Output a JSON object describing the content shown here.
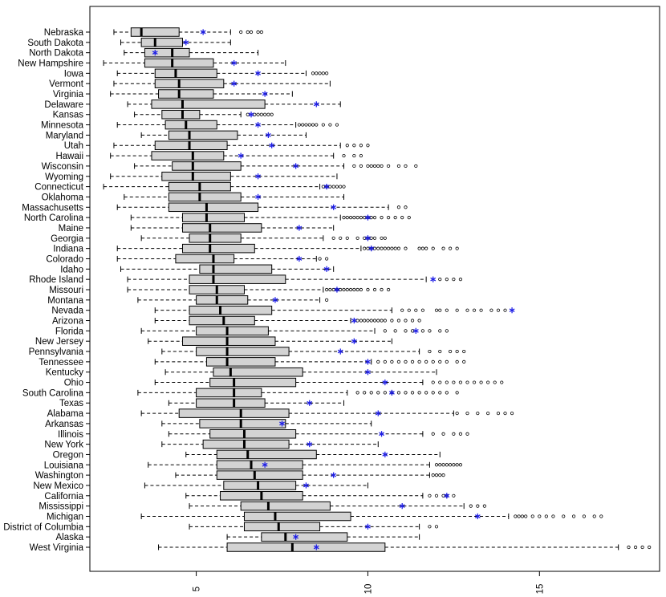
{
  "chart_data": {
    "type": "boxplot",
    "orientation": "horizontal",
    "xlim": [
      1.9,
      18.5
    ],
    "x_ticks": [
      5,
      10,
      15
    ],
    "x_tick_labels": [
      "5",
      "10",
      "15"
    ],
    "colors": {
      "box_fill": "#d3d3d3",
      "mean_marker": "#1f1fe6",
      "median": "#000000"
    },
    "series": [
      {
        "name": "Nebraska",
        "whisker_low": 2.6,
        "q1": 3.1,
        "median": 3.4,
        "q3": 4.5,
        "whisker_high": 6.0,
        "mean": 5.2,
        "outliers": [
          6.3,
          6.5,
          6.6,
          6.8,
          6.9
        ]
      },
      {
        "name": "South Dakota",
        "whisker_low": 2.8,
        "q1": 3.4,
        "median": 3.8,
        "q3": 4.6,
        "whisker_high": 6.0,
        "mean": 4.7,
        "outliers": []
      },
      {
        "name": "North Dakota",
        "whisker_low": 2.9,
        "q1": 3.5,
        "median": 4.3,
        "q3": 4.8,
        "whisker_high": 6.8,
        "mean": 3.8,
        "outliers": []
      },
      {
        "name": "New Hampshire",
        "whisker_low": 2.3,
        "q1": 3.5,
        "median": 4.3,
        "q3": 5.5,
        "whisker_high": 7.6,
        "mean": 6.1,
        "outliers": []
      },
      {
        "name": "Iowa",
        "whisker_low": 2.7,
        "q1": 3.8,
        "median": 4.4,
        "q3": 5.6,
        "whisker_high": 8.2,
        "mean": 6.8,
        "outliers": [
          8.4,
          8.5,
          8.6,
          8.7,
          8.8
        ]
      },
      {
        "name": "Vermont",
        "whisker_low": 2.6,
        "q1": 3.8,
        "median": 4.5,
        "q3": 5.8,
        "whisker_high": 8.9,
        "mean": 6.1,
        "outliers": []
      },
      {
        "name": "Virginia",
        "whisker_low": 2.5,
        "q1": 3.9,
        "median": 4.5,
        "q3": 5.5,
        "whisker_high": 7.8,
        "mean": 7.0,
        "outliers": []
      },
      {
        "name": "Delaware",
        "whisker_low": 3.0,
        "q1": 3.7,
        "median": 4.6,
        "q3": 7.0,
        "whisker_high": 9.2,
        "mean": 8.5,
        "outliers": []
      },
      {
        "name": "Kansas",
        "whisker_low": 3.2,
        "q1": 4.0,
        "median": 4.6,
        "q3": 5.1,
        "whisker_high": 6.3,
        "mean": 6.6,
        "outliers": [
          6.5,
          6.7,
          6.8,
          6.9,
          7.0,
          7.1,
          7.2
        ]
      },
      {
        "name": "Minnesota",
        "whisker_low": 2.7,
        "q1": 4.1,
        "median": 4.7,
        "q3": 5.6,
        "whisker_high": 7.9,
        "mean": 6.8,
        "outliers": [
          8.0,
          8.1,
          8.2,
          8.3,
          8.4,
          8.5,
          8.7,
          8.9,
          9.1
        ]
      },
      {
        "name": "Maryland",
        "whisker_low": 3.4,
        "q1": 4.2,
        "median": 4.8,
        "q3": 6.2,
        "whisker_high": 8.2,
        "mean": 7.1,
        "outliers": []
      },
      {
        "name": "Utah",
        "whisker_low": 2.6,
        "q1": 3.8,
        "median": 4.8,
        "q3": 5.9,
        "whisker_high": 9.2,
        "mean": 7.2,
        "outliers": [
          9.4,
          9.6,
          9.8,
          10.0
        ]
      },
      {
        "name": "Hawaii",
        "whisker_low": 2.5,
        "q1": 3.7,
        "median": 4.9,
        "q3": 5.8,
        "whisker_high": 9.0,
        "mean": 6.3,
        "outliers": [
          9.3,
          9.6,
          9.8
        ]
      },
      {
        "name": "Wisconsin",
        "whisker_low": 3.2,
        "q1": 4.3,
        "median": 4.9,
        "q3": 6.3,
        "whisker_high": 9.3,
        "mean": 7.9,
        "outliers": [
          9.6,
          9.8,
          10.0,
          10.1,
          10.2,
          10.3,
          10.4,
          10.6,
          10.9,
          11.1,
          11.4
        ]
      },
      {
        "name": "Wyoming",
        "whisker_low": 2.5,
        "q1": 4.0,
        "median": 4.9,
        "q3": 6.0,
        "whisker_high": 9.1,
        "mean": 6.8,
        "outliers": []
      },
      {
        "name": "Connecticut",
        "whisker_low": 2.3,
        "q1": 4.2,
        "median": 5.1,
        "q3": 6.0,
        "whisker_high": 8.6,
        "mean": 8.8,
        "outliers": [
          8.7,
          8.8,
          8.9,
          9.0,
          9.1,
          9.2,
          9.3
        ]
      },
      {
        "name": "Oklahoma",
        "whisker_low": 2.9,
        "q1": 4.2,
        "median": 5.1,
        "q3": 6.3,
        "whisker_high": 9.3,
        "mean": 6.8,
        "outliers": []
      },
      {
        "name": "Massachusetts",
        "whisker_low": 2.7,
        "q1": 4.2,
        "median": 5.3,
        "q3": 6.8,
        "whisker_high": 10.6,
        "mean": 9.0,
        "outliers": [
          10.9,
          11.1
        ]
      },
      {
        "name": "North Carolina",
        "whisker_low": 3.1,
        "q1": 4.6,
        "median": 5.3,
        "q3": 6.4,
        "whisker_high": 9.2,
        "mean": 10.0,
        "outliers": [
          9.3,
          9.4,
          9.5,
          9.6,
          9.7,
          9.8,
          9.9,
          10.0,
          10.1,
          10.2,
          10.4,
          10.6,
          10.8,
          11.0,
          11.2
        ]
      },
      {
        "name": "Maine",
        "whisker_low": 3.1,
        "q1": 4.6,
        "median": 5.4,
        "q3": 6.9,
        "whisker_high": 9.0,
        "mean": 8.0,
        "outliers": []
      },
      {
        "name": "Georgia",
        "whisker_low": 3.4,
        "q1": 4.8,
        "median": 5.4,
        "q3": 6.3,
        "whisker_high": 8.7,
        "mean": 10.0,
        "outliers": [
          9.0,
          9.2,
          9.4,
          9.7,
          9.9,
          10.0,
          10.1,
          10.2,
          10.4,
          10.5
        ]
      },
      {
        "name": "Indiana",
        "whisker_low": 2.7,
        "q1": 4.6,
        "median": 5.4,
        "q3": 6.7,
        "whisker_high": 9.8,
        "mean": 10.1,
        "outliers": [
          9.9,
          10.0,
          10.1,
          10.2,
          10.3,
          10.4,
          10.5,
          10.6,
          10.7,
          10.8,
          10.9,
          11.1,
          11.5,
          11.6,
          11.7,
          11.9,
          12.2,
          12.4,
          12.6
        ]
      },
      {
        "name": "Colorado",
        "whisker_low": 2.7,
        "q1": 4.4,
        "median": 5.5,
        "q3": 6.1,
        "whisker_high": 8.5,
        "mean": 8.0,
        "outliers": [
          8.6,
          8.8
        ]
      },
      {
        "name": "Idaho",
        "whisker_low": 2.8,
        "q1": 5.1,
        "median": 5.5,
        "q3": 7.2,
        "whisker_high": 9.0,
        "mean": 8.8,
        "outliers": []
      },
      {
        "name": "Rhode Island",
        "whisker_low": 3.0,
        "q1": 4.8,
        "median": 5.5,
        "q3": 7.6,
        "whisker_high": 11.7,
        "mean": 11.9,
        "outliers": [
          12.1,
          12.3,
          12.5,
          12.7
        ]
      },
      {
        "name": "Missouri",
        "whisker_low": 3.0,
        "q1": 4.8,
        "median": 5.6,
        "q3": 6.4,
        "whisker_high": 8.7,
        "mean": 9.1,
        "outliers": [
          8.8,
          8.9,
          9.0,
          9.1,
          9.2,
          9.3,
          9.4,
          9.5,
          9.6,
          9.7,
          9.8,
          10.0,
          10.2,
          10.4,
          10.6
        ]
      },
      {
        "name": "Montana",
        "whisker_low": 3.3,
        "q1": 5.0,
        "median": 5.6,
        "q3": 6.5,
        "whisker_high": 8.6,
        "mean": 7.3,
        "outliers": [
          8.8
        ]
      },
      {
        "name": "Nevada",
        "whisker_low": 3.8,
        "q1": 4.8,
        "median": 5.7,
        "q3": 7.2,
        "whisker_high": 10.7,
        "mean": 14.2,
        "outliers": [
          11.0,
          11.2,
          11.4,
          11.6,
          12.0,
          12.1,
          12.3,
          12.6,
          12.9,
          13.1,
          13.3,
          13.6,
          13.8,
          14.0
        ]
      },
      {
        "name": "Arizona",
        "whisker_low": 3.8,
        "q1": 4.8,
        "median": 5.8,
        "q3": 6.7,
        "whisker_high": 9.5,
        "mean": 9.6,
        "outliers": [
          9.7,
          9.8,
          9.9,
          10.0,
          10.1,
          10.2,
          10.3,
          10.4,
          10.5,
          10.7,
          10.9,
          11.1,
          11.3,
          11.5
        ]
      },
      {
        "name": "Florida",
        "whisker_low": 3.4,
        "q1": 5.0,
        "median": 5.9,
        "q3": 7.1,
        "whisker_high": 10.2,
        "mean": 11.4,
        "outliers": [
          10.5,
          10.8,
          11.1,
          11.3,
          11.6,
          11.8,
          12.1,
          12.3
        ]
      },
      {
        "name": "New Jersey",
        "whisker_low": 3.6,
        "q1": 4.6,
        "median": 5.9,
        "q3": 7.3,
        "whisker_high": 10.7,
        "mean": 9.6,
        "outliers": []
      },
      {
        "name": "Pennsylvania",
        "whisker_low": 4.0,
        "q1": 5.0,
        "median": 5.9,
        "q3": 7.7,
        "whisker_high": 11.5,
        "mean": 9.2,
        "outliers": [
          11.8,
          12.1,
          12.4,
          12.6,
          12.8
        ]
      },
      {
        "name": "Tennessee",
        "whisker_low": 3.8,
        "q1": 5.3,
        "median": 5.9,
        "q3": 7.3,
        "whisker_high": 10.1,
        "mean": 10.0,
        "outliers": [
          10.3,
          10.5,
          10.7,
          10.9,
          11.1,
          11.3,
          11.5,
          11.7,
          11.9,
          12.1,
          12.3,
          12.6,
          12.8
        ]
      },
      {
        "name": "Kentucky",
        "whisker_low": 4.1,
        "q1": 5.5,
        "median": 6.0,
        "q3": 8.1,
        "whisker_high": 12.0,
        "mean": 10.0,
        "outliers": []
      },
      {
        "name": "Ohio",
        "whisker_low": 3.8,
        "q1": 5.4,
        "median": 6.1,
        "q3": 7.9,
        "whisker_high": 11.6,
        "mean": 10.5,
        "outliers": [
          11.9,
          12.1,
          12.3,
          12.5,
          12.7,
          12.9,
          13.1,
          13.3,
          13.5,
          13.7,
          13.9
        ]
      },
      {
        "name": "South Carolina",
        "whisker_low": 3.3,
        "q1": 5.0,
        "median": 6.1,
        "q3": 6.9,
        "whisker_high": 9.4,
        "mean": 10.7,
        "outliers": [
          9.7,
          9.9,
          10.1,
          10.3,
          10.5,
          10.7,
          10.9,
          11.1,
          11.3,
          11.5,
          11.7,
          11.9,
          12.1,
          12.3,
          12.6
        ]
      },
      {
        "name": "Texas",
        "whisker_low": 4.2,
        "q1": 5.0,
        "median": 6.1,
        "q3": 7.0,
        "whisker_high": 9.3,
        "mean": 8.3,
        "outliers": []
      },
      {
        "name": "Alabama",
        "whisker_low": 3.4,
        "q1": 4.5,
        "median": 6.3,
        "q3": 7.7,
        "whisker_high": 12.5,
        "mean": 10.3,
        "outliers": [
          12.6,
          12.9,
          13.2,
          13.5,
          13.8,
          14.0,
          14.2
        ]
      },
      {
        "name": "Arkansas",
        "whisker_low": 4.0,
        "q1": 5.1,
        "median": 6.3,
        "q3": 7.6,
        "whisker_high": 10.1,
        "mean": 7.5,
        "outliers": []
      },
      {
        "name": "Illinois",
        "whisker_low": 4.2,
        "q1": 5.4,
        "median": 6.4,
        "q3": 7.9,
        "whisker_high": 11.6,
        "mean": 10.4,
        "outliers": [
          11.9,
          12.2,
          12.5,
          12.7,
          12.9
        ]
      },
      {
        "name": "New York",
        "whisker_low": 4.0,
        "q1": 5.2,
        "median": 6.4,
        "q3": 7.7,
        "whisker_high": 10.3,
        "mean": 8.3,
        "outliers": []
      },
      {
        "name": "Oregon",
        "whisker_low": 4.7,
        "q1": 5.6,
        "median": 6.5,
        "q3": 8.5,
        "whisker_high": 12.1,
        "mean": 10.5,
        "outliers": []
      },
      {
        "name": "Louisiana",
        "whisker_low": 3.6,
        "q1": 5.6,
        "median": 6.6,
        "q3": 8.1,
        "whisker_high": 11.8,
        "mean": 7.0,
        "outliers": [
          12.0,
          12.1,
          12.2,
          12.3,
          12.4,
          12.5,
          12.6,
          12.7
        ]
      },
      {
        "name": "Washington",
        "whisker_low": 4.4,
        "q1": 5.6,
        "median": 6.7,
        "q3": 8.1,
        "whisker_high": 11.8,
        "mean": 9.0,
        "outliers": [
          11.9,
          12.0,
          12.1,
          12.2
        ]
      },
      {
        "name": "New Mexico",
        "whisker_low": 3.5,
        "q1": 5.8,
        "median": 6.8,
        "q3": 7.9,
        "whisker_high": 10.0,
        "mean": 8.2,
        "outliers": []
      },
      {
        "name": "California",
        "whisker_low": 4.7,
        "q1": 5.7,
        "median": 6.9,
        "q3": 8.1,
        "whisker_high": 11.6,
        "mean": 12.3,
        "outliers": [
          11.8,
          12.0,
          12.2,
          12.3,
          12.5
        ]
      },
      {
        "name": "Mississippi",
        "whisker_low": 4.8,
        "q1": 6.3,
        "median": 7.1,
        "q3": 8.9,
        "whisker_high": 12.8,
        "mean": 11.0,
        "outliers": [
          13.0,
          13.2,
          13.4
        ]
      },
      {
        "name": "Michigan",
        "whisker_low": 3.4,
        "q1": 6.4,
        "median": 7.3,
        "q3": 9.5,
        "whisker_high": 14.1,
        "mean": 13.2,
        "outliers": [
          14.3,
          14.4,
          14.5,
          14.6,
          14.8,
          15.0,
          15.2,
          15.4,
          15.7,
          16.0,
          16.3,
          16.6,
          16.8
        ]
      },
      {
        "name": "District of Columbia",
        "whisker_low": 4.8,
        "q1": 6.4,
        "median": 7.4,
        "q3": 8.6,
        "whisker_high": 11.5,
        "mean": 10.0,
        "outliers": [
          11.8,
          12.0
        ]
      },
      {
        "name": "Alaska",
        "whisker_low": 5.9,
        "q1": 6.9,
        "median": 7.6,
        "q3": 9.4,
        "whisker_high": 11.5,
        "mean": 7.9,
        "outliers": []
      },
      {
        "name": "West Virginia",
        "whisker_low": 3.9,
        "q1": 5.9,
        "median": 7.8,
        "q3": 10.5,
        "whisker_high": 17.3,
        "mean": 8.5,
        "outliers": [
          17.6,
          17.8,
          18.0,
          18.2
        ]
      }
    ]
  }
}
